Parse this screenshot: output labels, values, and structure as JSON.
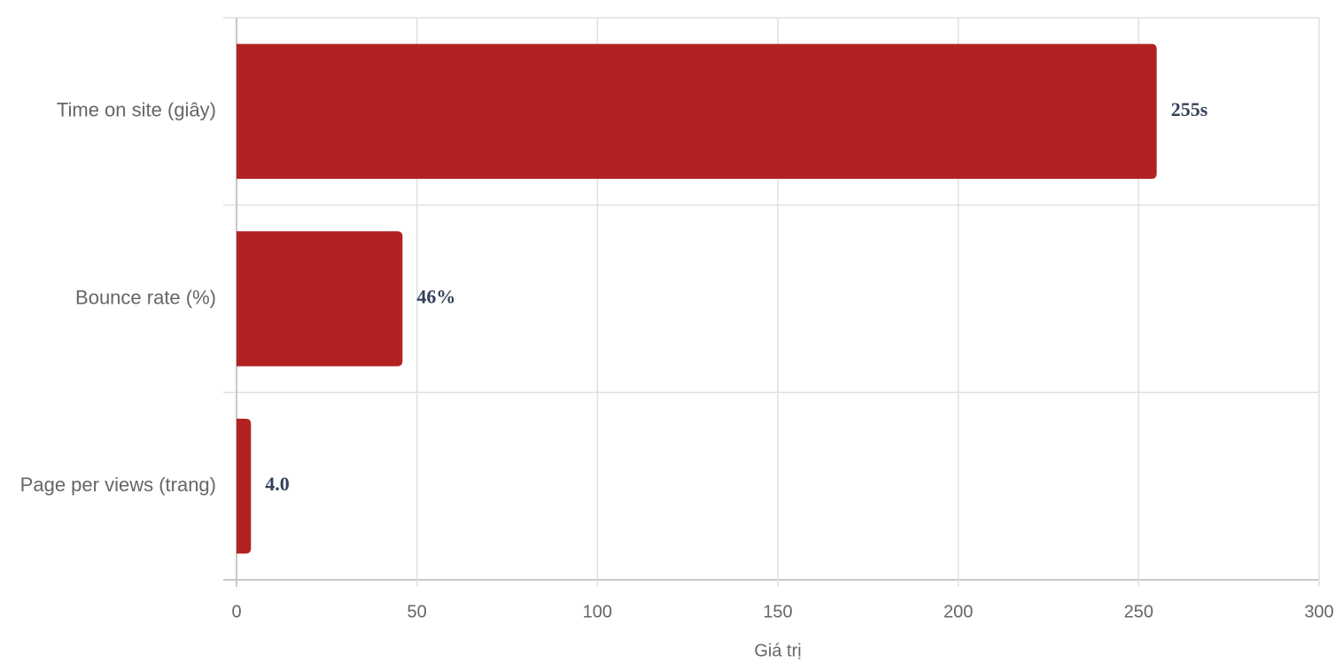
{
  "chart_data": {
    "type": "bar",
    "orientation": "horizontal",
    "categories": [
      "Time on site (giây)",
      "Bounce rate (%)",
      "Page per views (trang)"
    ],
    "values": [
      255,
      46,
      4.0
    ],
    "value_labels": [
      "255s",
      "46%",
      "4.0"
    ],
    "color": "#b22222",
    "xlabel": "Giá trị",
    "xlim": [
      0,
      300
    ],
    "xticks": [
      0,
      50,
      100,
      150,
      200,
      250,
      300
    ],
    "grid": true
  }
}
